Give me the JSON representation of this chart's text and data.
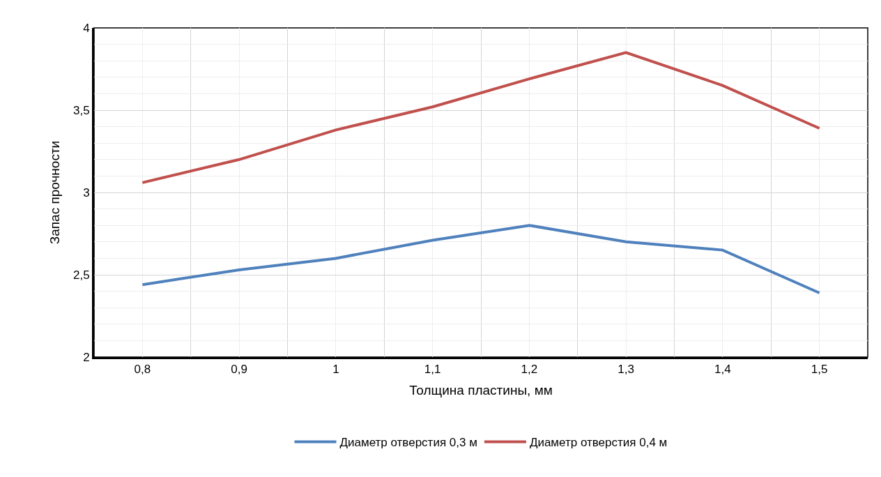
{
  "chart_data": {
    "type": "line",
    "xlabel": "Толщина пластины, мм",
    "ylabel": "Запас прочности",
    "categories": [
      "0,8",
      "0,9",
      "1",
      "1,1",
      "1,2",
      "1,3",
      "1,4",
      "1,5"
    ],
    "series": [
      {
        "name": "Диаметр отверстия 0,3 м",
        "color": "#4f81bd",
        "values": [
          2.44,
          2.53,
          2.6,
          2.71,
          2.8,
          2.7,
          2.65,
          2.39
        ]
      },
      {
        "name": "Диаметр отверстия 0,4 м",
        "color": "#c0504d",
        "values": [
          3.06,
          3.2,
          3.38,
          3.52,
          3.69,
          3.85,
          3.65,
          3.39
        ]
      }
    ],
    "ylim": [
      2,
      4
    ],
    "yticks": [
      2,
      {
        "value": 2.5,
        "label": "2,5"
      },
      3,
      {
        "value": 3.5,
        "label": "3,5"
      },
      4
    ],
    "grid": true,
    "legend": "bottom",
    "marker": "none",
    "line_style": "solid"
  }
}
